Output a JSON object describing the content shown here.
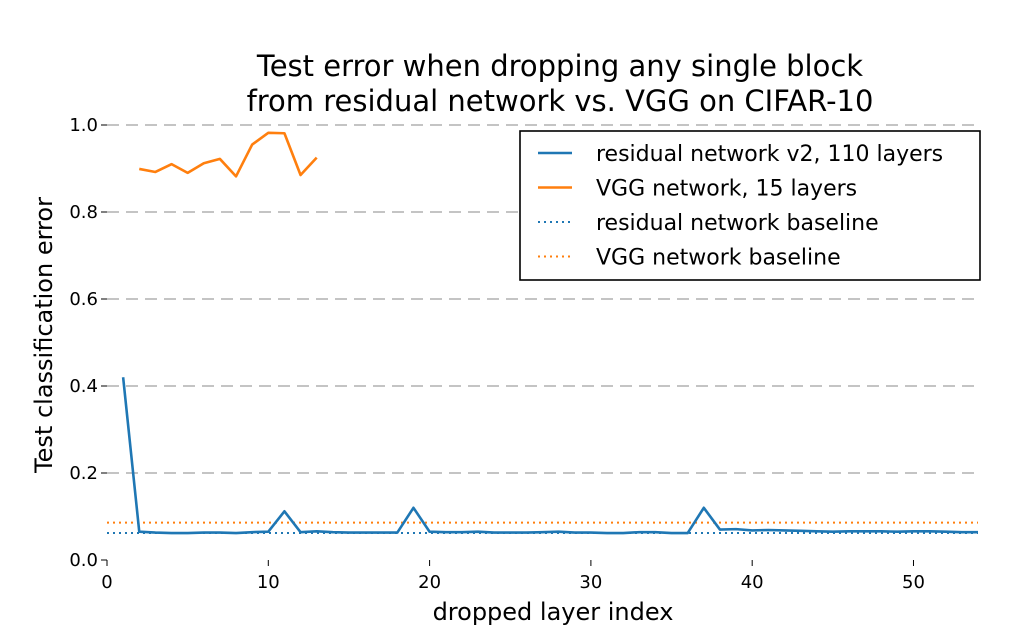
{
  "chart_data": {
    "type": "line",
    "title": [
      "Test error when dropping any single block",
      "from residual network vs. VGG on CIFAR-10"
    ],
    "xlabel": "dropped layer index",
    "ylabel": "Test classification error",
    "xlim": [
      0,
      54
    ],
    "ylim": [
      0,
      1.0
    ],
    "xticks": [
      0,
      10,
      20,
      30,
      40,
      50
    ],
    "xtick_labels": [
      "0",
      "10",
      "20",
      "30",
      "40",
      "50"
    ],
    "yticks": [
      0.0,
      0.2,
      0.4,
      0.6,
      0.8,
      1.0
    ],
    "ytick_labels": [
      "0.0",
      "0.2",
      "0.4",
      "0.6",
      "0.8",
      "1.0"
    ],
    "grid": "y-dashed",
    "legend_position": "top-right",
    "series": [
      {
        "name": "residual network v2, 110 layers",
        "color": "#1f77b4",
        "style": "solid",
        "x": [
          1,
          2,
          3,
          4,
          5,
          6,
          7,
          8,
          9,
          10,
          11,
          12,
          13,
          14,
          15,
          16,
          17,
          18,
          19,
          20,
          21,
          22,
          23,
          24,
          25,
          26,
          27,
          28,
          29,
          30,
          31,
          32,
          33,
          34,
          35,
          36,
          37,
          38,
          39,
          40,
          41,
          42,
          43,
          44,
          45,
          46,
          47,
          48,
          49,
          50,
          51,
          52,
          53,
          54
        ],
        "values": [
          0.42,
          0.065,
          0.063,
          0.062,
          0.062,
          0.063,
          0.063,
          0.062,
          0.064,
          0.065,
          0.112,
          0.064,
          0.066,
          0.064,
          0.063,
          0.063,
          0.063,
          0.063,
          0.12,
          0.065,
          0.064,
          0.064,
          0.065,
          0.063,
          0.063,
          0.063,
          0.064,
          0.065,
          0.063,
          0.063,
          0.062,
          0.062,
          0.064,
          0.064,
          0.062,
          0.062,
          0.12,
          0.07,
          0.071,
          0.068,
          0.069,
          0.068,
          0.067,
          0.066,
          0.065,
          0.066,
          0.066,
          0.066,
          0.065,
          0.066,
          0.066,
          0.065,
          0.064,
          0.064
        ]
      },
      {
        "name": "VGG network, 15 layers",
        "color": "#ff7f0e",
        "style": "solid",
        "x": [
          2,
          3,
          4,
          5,
          6,
          7,
          8,
          9,
          10,
          11,
          12,
          13
        ],
        "values": [
          0.899,
          0.892,
          0.91,
          0.89,
          0.912,
          0.922,
          0.882,
          0.955,
          0.982,
          0.981,
          0.885,
          0.925
        ]
      },
      {
        "name": "residual network baseline",
        "color": "#1f77b4",
        "style": "dotted",
        "x": [
          0,
          54
        ],
        "values": [
          0.062,
          0.062
        ]
      },
      {
        "name": "VGG network baseline",
        "color": "#ff7f0e",
        "style": "dotted",
        "x": [
          0,
          54
        ],
        "values": [
          0.086,
          0.086
        ]
      }
    ]
  }
}
